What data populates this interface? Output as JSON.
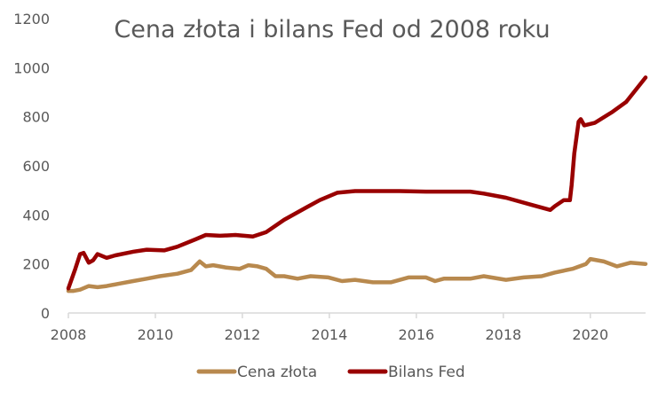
{
  "chart_data": {
    "type": "line",
    "title": "Cena złota i bilans Fed od 2008 roku",
    "xlabel": "",
    "ylabel": "",
    "xlim": [
      2008,
      2021.27
    ],
    "ylim": [
      0,
      1200
    ],
    "x_ticks": [
      "2008",
      "2010",
      "2012",
      "2014",
      "2016",
      "2018",
      "2020"
    ],
    "y_ticks": [
      "0",
      "200",
      "400",
      "600",
      "800",
      "1000",
      "1200"
    ],
    "grid": false,
    "legend_position": "bottom",
    "series": [
      {
        "name": "Cena złota",
        "color": "#B8894E",
        "x": [
          2008.0,
          2008.12,
          2008.27,
          2008.47,
          2008.67,
          2008.88,
          2009.18,
          2009.49,
          2009.8,
          2010.1,
          2010.51,
          2010.82,
          2011.02,
          2011.16,
          2011.33,
          2011.63,
          2011.94,
          2012.14,
          2012.35,
          2012.55,
          2012.76,
          2012.96,
          2013.27,
          2013.57,
          2013.98,
          2014.29,
          2014.59,
          2015.0,
          2015.41,
          2015.82,
          2016.22,
          2016.43,
          2016.63,
          2017.24,
          2017.55,
          2018.06,
          2018.47,
          2018.88,
          2019.18,
          2019.59,
          2019.9,
          2020.0,
          2020.31,
          2020.61,
          2020.92,
          2021.27
        ],
        "values": [
          90,
          90,
          95,
          110,
          105,
          110,
          120,
          130,
          140,
          150,
          160,
          175,
          210,
          190,
          195,
          185,
          180,
          195,
          190,
          180,
          150,
          150,
          140,
          150,
          145,
          130,
          135,
          125,
          125,
          145,
          145,
          130,
          140,
          140,
          150,
          135,
          145,
          150,
          165,
          180,
          200,
          220,
          210,
          190,
          205,
          200
        ]
      },
      {
        "name": "Bilans Fed",
        "color": "#990000",
        "x": [
          2008.0,
          2008.16,
          2008.27,
          2008.35,
          2008.47,
          2008.57,
          2008.67,
          2008.88,
          2009.08,
          2009.5,
          2009.8,
          2010.2,
          2010.5,
          2010.92,
          2011.16,
          2011.49,
          2011.84,
          2012.24,
          2012.55,
          2012.96,
          2013.47,
          2013.78,
          2014.18,
          2014.59,
          2015.61,
          2016.22,
          2017.24,
          2017.55,
          2018.06,
          2018.67,
          2019.08,
          2019.18,
          2019.39,
          2019.53,
          2019.57,
          2019.63,
          2019.73,
          2019.78,
          2019.86,
          2020.1,
          2020.51,
          2020.82,
          2021.27
        ],
        "values": [
          100,
          180,
          240,
          245,
          205,
          215,
          240,
          225,
          235,
          250,
          258,
          255,
          270,
          300,
          318,
          315,
          318,
          312,
          330,
          380,
          430,
          460,
          490,
          497,
          497,
          495,
          495,
          487,
          470,
          440,
          420,
          435,
          460,
          460,
          520,
          650,
          780,
          790,
          765,
          775,
          820,
          860,
          960
        ]
      }
    ]
  }
}
